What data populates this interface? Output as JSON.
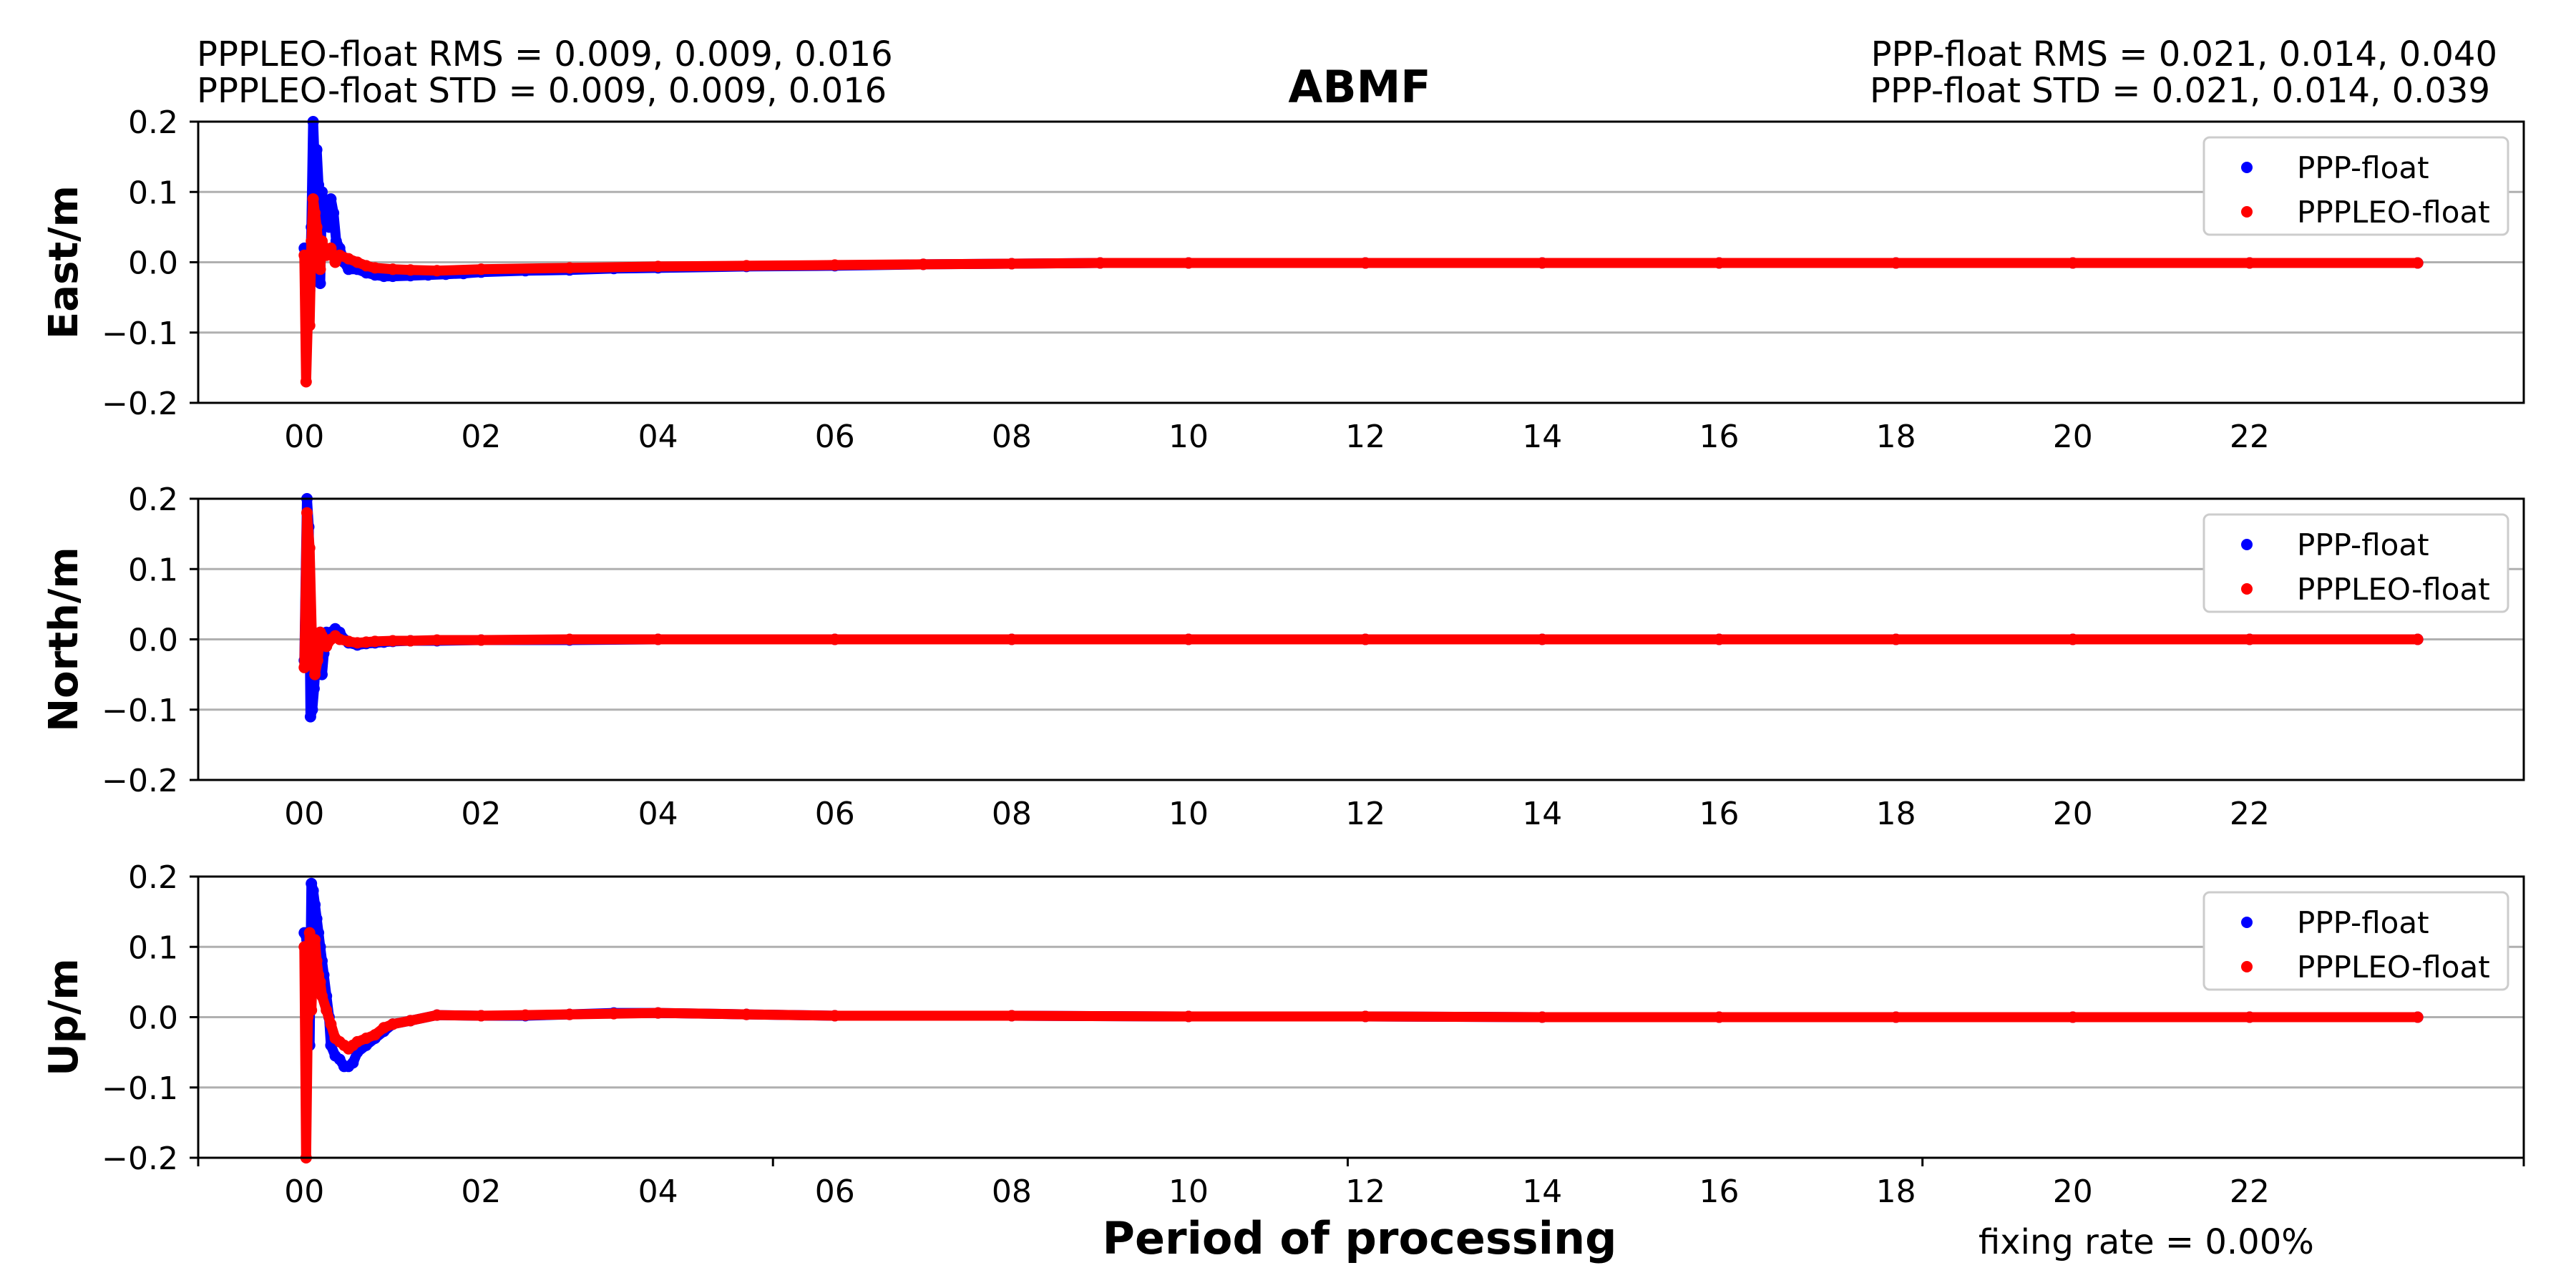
{
  "figure": {
    "title": "ABMF",
    "stats_left": {
      "rms": "PPPLEO-float RMS =  0.009, 0.009, 0.016",
      "std": "PPPLEO-float STD =  0.009, 0.009, 0.016"
    },
    "stats_right": {
      "rms": "PPP-float RMS =  0.021, 0.014, 0.040",
      "std": "PPP-float STD =  0.021, 0.014, 0.039"
    },
    "xlabel": "Period of processing",
    "fixing_rate": "fixing rate =   0.00%"
  },
  "colors": {
    "ppp": "#0000ff",
    "pppleo": "#ff0000",
    "grid": "#b0b0b0",
    "axis": "#000000"
  },
  "chart_data": [
    {
      "type": "scatter",
      "ylabel": "East/m",
      "ylim": [
        -0.2,
        0.2
      ],
      "yticks": [
        -0.2,
        -0.1,
        0.0,
        0.1,
        0.2
      ],
      "ytick_labels": [
        "−0.2",
        "−0.1",
        "0.0",
        "0.1",
        "0.2"
      ],
      "xlim_hours": [
        -1.2,
        25.1
      ],
      "xticks_hours": [
        0,
        2,
        4,
        6,
        8,
        10,
        12,
        14,
        16,
        18,
        20,
        22
      ],
      "xtick_labels": [
        "00",
        "02",
        "04",
        "06",
        "08",
        "10",
        "12",
        "14",
        "16",
        "18",
        "20",
        "22"
      ],
      "grid": true,
      "legend": "top-right",
      "series": [
        {
          "name": "PPP-float",
          "color": "blue",
          "x": [
            0.0,
            0.03,
            0.06,
            0.08,
            0.1,
            0.12,
            0.14,
            0.16,
            0.18,
            0.2,
            0.22,
            0.25,
            0.28,
            0.3,
            0.33,
            0.36,
            0.4,
            0.45,
            0.5,
            0.6,
            0.7,
            0.8,
            0.9,
            1.0,
            1.2,
            1.4,
            1.6,
            1.8,
            2.0,
            2.5,
            3.0,
            3.5,
            4.0,
            5.0,
            6.0,
            7.0,
            8.0,
            9.0,
            10,
            12,
            14,
            16,
            18,
            20,
            22,
            23.9
          ],
          "y": [
            0.02,
            -0.02,
            -0.04,
            0.05,
            0.2,
            0.13,
            0.16,
            0.11,
            -0.03,
            0.1,
            0.06,
            0.08,
            0.05,
            0.09,
            0.07,
            0.03,
            0.02,
            0.0,
            -0.01,
            -0.01,
            -0.015,
            -0.018,
            -0.02,
            -0.02,
            -0.019,
            -0.018,
            -0.017,
            -0.016,
            -0.014,
            -0.012,
            -0.011,
            -0.009,
            -0.008,
            -0.006,
            -0.005,
            -0.003,
            -0.002,
            -0.001,
            -0.001,
            -0.001,
            -0.001,
            -0.001,
            -0.001,
            -0.001,
            -0.001,
            -0.001
          ]
        },
        {
          "name": "PPPLEO-float",
          "color": "red",
          "x": [
            0.0,
            0.02,
            0.04,
            0.06,
            0.08,
            0.1,
            0.12,
            0.14,
            0.16,
            0.18,
            0.2,
            0.25,
            0.3,
            0.35,
            0.4,
            0.5,
            0.6,
            0.7,
            0.8,
            1.0,
            1.2,
            1.5,
            2.0,
            3.0,
            4.0,
            5.0,
            6.0,
            7.0,
            8.0,
            9.0,
            10,
            12,
            14,
            16,
            18,
            20,
            22,
            23.9
          ],
          "y": [
            0.01,
            -0.17,
            -0.08,
            -0.09,
            0.03,
            0.09,
            0.07,
            0.05,
            0.02,
            -0.01,
            0.03,
            0.01,
            0.02,
            0.0,
            0.01,
            0.005,
            0.0,
            -0.005,
            -0.008,
            -0.01,
            -0.011,
            -0.012,
            -0.01,
            -0.008,
            -0.006,
            -0.005,
            -0.004,
            -0.003,
            -0.002,
            -0.001,
            -0.001,
            -0.001,
            -0.001,
            -0.001,
            -0.001,
            -0.001,
            -0.001,
            -0.001
          ]
        }
      ]
    },
    {
      "type": "scatter",
      "ylabel": "North/m",
      "ylim": [
        -0.2,
        0.2
      ],
      "yticks": [
        -0.2,
        -0.1,
        0.0,
        0.1,
        0.2
      ],
      "ytick_labels": [
        "−0.2",
        "−0.1",
        "0.0",
        "0.1",
        "0.2"
      ],
      "xlim_hours": [
        -1.2,
        25.1
      ],
      "xticks_hours": [
        0,
        2,
        4,
        6,
        8,
        10,
        12,
        14,
        16,
        18,
        20,
        22
      ],
      "xtick_labels": [
        "00",
        "02",
        "04",
        "06",
        "08",
        "10",
        "12",
        "14",
        "16",
        "18",
        "20",
        "22"
      ],
      "grid": true,
      "legend": "top-right",
      "series": [
        {
          "name": "PPP-float",
          "color": "blue",
          "x": [
            0.0,
            0.03,
            0.05,
            0.07,
            0.09,
            0.11,
            0.13,
            0.15,
            0.18,
            0.2,
            0.22,
            0.25,
            0.28,
            0.3,
            0.35,
            0.4,
            0.45,
            0.5,
            0.6,
            0.7,
            0.8,
            0.9,
            1.0,
            1.2,
            1.5,
            2.0,
            3.0,
            4.0,
            6.0,
            8.0,
            10,
            12,
            14,
            16,
            18,
            20,
            22,
            23.9
          ],
          "y": [
            -0.03,
            0.2,
            0.16,
            -0.11,
            -0.1,
            -0.07,
            -0.03,
            0.0,
            0.01,
            -0.05,
            -0.02,
            0.01,
            0.0,
            0.01,
            0.015,
            0.01,
            0.0,
            -0.005,
            -0.008,
            -0.006,
            -0.005,
            -0.004,
            -0.003,
            -0.002,
            -0.002,
            -0.001,
            -0.001,
            0.0,
            0.0,
            0.0,
            0.0,
            0.0,
            0.0,
            0.0,
            0.0,
            0.0,
            0.0,
            0.0
          ]
        },
        {
          "name": "PPPLEO-float",
          "color": "red",
          "x": [
            0.0,
            0.03,
            0.06,
            0.09,
            0.12,
            0.15,
            0.18,
            0.2,
            0.25,
            0.3,
            0.35,
            0.4,
            0.5,
            0.6,
            0.7,
            0.8,
            1.0,
            1.2,
            1.5,
            2.0,
            3.0,
            4.0,
            6.0,
            8.0,
            10,
            12,
            14,
            16,
            18,
            20,
            22,
            23.9
          ],
          "y": [
            -0.04,
            0.18,
            0.13,
            -0.02,
            -0.05,
            -0.03,
            0.01,
            0.005,
            -0.01,
            0.0,
            0.005,
            0.0,
            -0.003,
            -0.005,
            -0.004,
            -0.003,
            -0.002,
            -0.002,
            -0.001,
            -0.001,
            0.0,
            0.0,
            0.0,
            0.0,
            0.0,
            0.0,
            0.0,
            0.0,
            0.0,
            0.0,
            0.0,
            0.0
          ]
        }
      ]
    },
    {
      "type": "scatter",
      "ylabel": "Up/m",
      "ylim": [
        -0.2,
        0.2
      ],
      "yticks": [
        -0.2,
        -0.1,
        0.0,
        0.1,
        0.2
      ],
      "ytick_labels": [
        "−0.2",
        "−0.1",
        "0.0",
        "0.1",
        "0.2"
      ],
      "xlim_hours": [
        -1.2,
        25.1
      ],
      "xticks_hours": [
        0,
        2,
        4,
        6,
        8,
        10,
        12,
        14,
        16,
        18,
        20,
        22
      ],
      "xtick_labels": [
        "00",
        "02",
        "04",
        "06",
        "08",
        "10",
        "12",
        "14",
        "16",
        "18",
        "20",
        "22"
      ],
      "grid": true,
      "legend": "top-right",
      "series": [
        {
          "name": "PPP-float",
          "color": "blue",
          "x": [
            0.0,
            0.03,
            0.06,
            0.08,
            0.1,
            0.12,
            0.14,
            0.16,
            0.18,
            0.2,
            0.22,
            0.25,
            0.28,
            0.3,
            0.35,
            0.4,
            0.45,
            0.5,
            0.55,
            0.6,
            0.7,
            0.8,
            0.9,
            1.0,
            1.2,
            1.5,
            2.0,
            2.5,
            3.0,
            3.5,
            4.0,
            5.0,
            6.0,
            8.0,
            10,
            12,
            14,
            16,
            18,
            20,
            22,
            23.9
          ],
          "y": [
            0.12,
            0.11,
            -0.04,
            0.19,
            0.18,
            0.16,
            0.14,
            0.12,
            0.1,
            0.08,
            0.06,
            0.03,
            0.0,
            -0.04,
            -0.055,
            -0.06,
            -0.07,
            -0.07,
            -0.065,
            -0.05,
            -0.04,
            -0.03,
            -0.02,
            -0.01,
            -0.005,
            0.003,
            0.002,
            0.002,
            0.004,
            0.006,
            0.006,
            0.004,
            0.002,
            0.002,
            0.001,
            0.001,
            0.0,
            0.0,
            0.0,
            0.0,
            0.0,
            0.0
          ]
        },
        {
          "name": "PPPLEO-float",
          "color": "red",
          "x": [
            0.0,
            0.02,
            0.04,
            0.06,
            0.08,
            0.1,
            0.12,
            0.14,
            0.16,
            0.18,
            0.2,
            0.25,
            0.3,
            0.35,
            0.4,
            0.45,
            0.5,
            0.55,
            0.6,
            0.7,
            0.8,
            0.9,
            1.0,
            1.2,
            1.5,
            2.0,
            2.5,
            3.0,
            3.5,
            4.0,
            5.0,
            6.0,
            8.0,
            10,
            12,
            14,
            16,
            18,
            20,
            22,
            23.9
          ],
          "y": [
            0.1,
            -0.2,
            0.0,
            0.12,
            0.01,
            0.09,
            0.11,
            0.08,
            0.06,
            0.05,
            0.03,
            0.01,
            -0.01,
            -0.03,
            -0.035,
            -0.04,
            -0.045,
            -0.04,
            -0.035,
            -0.03,
            -0.025,
            -0.015,
            -0.01,
            -0.005,
            0.003,
            0.002,
            0.003,
            0.004,
            0.005,
            0.006,
            0.004,
            0.002,
            0.002,
            0.001,
            0.001,
            0.0,
            0.0,
            0.0,
            0.0,
            0.0,
            0.0
          ]
        }
      ]
    }
  ]
}
